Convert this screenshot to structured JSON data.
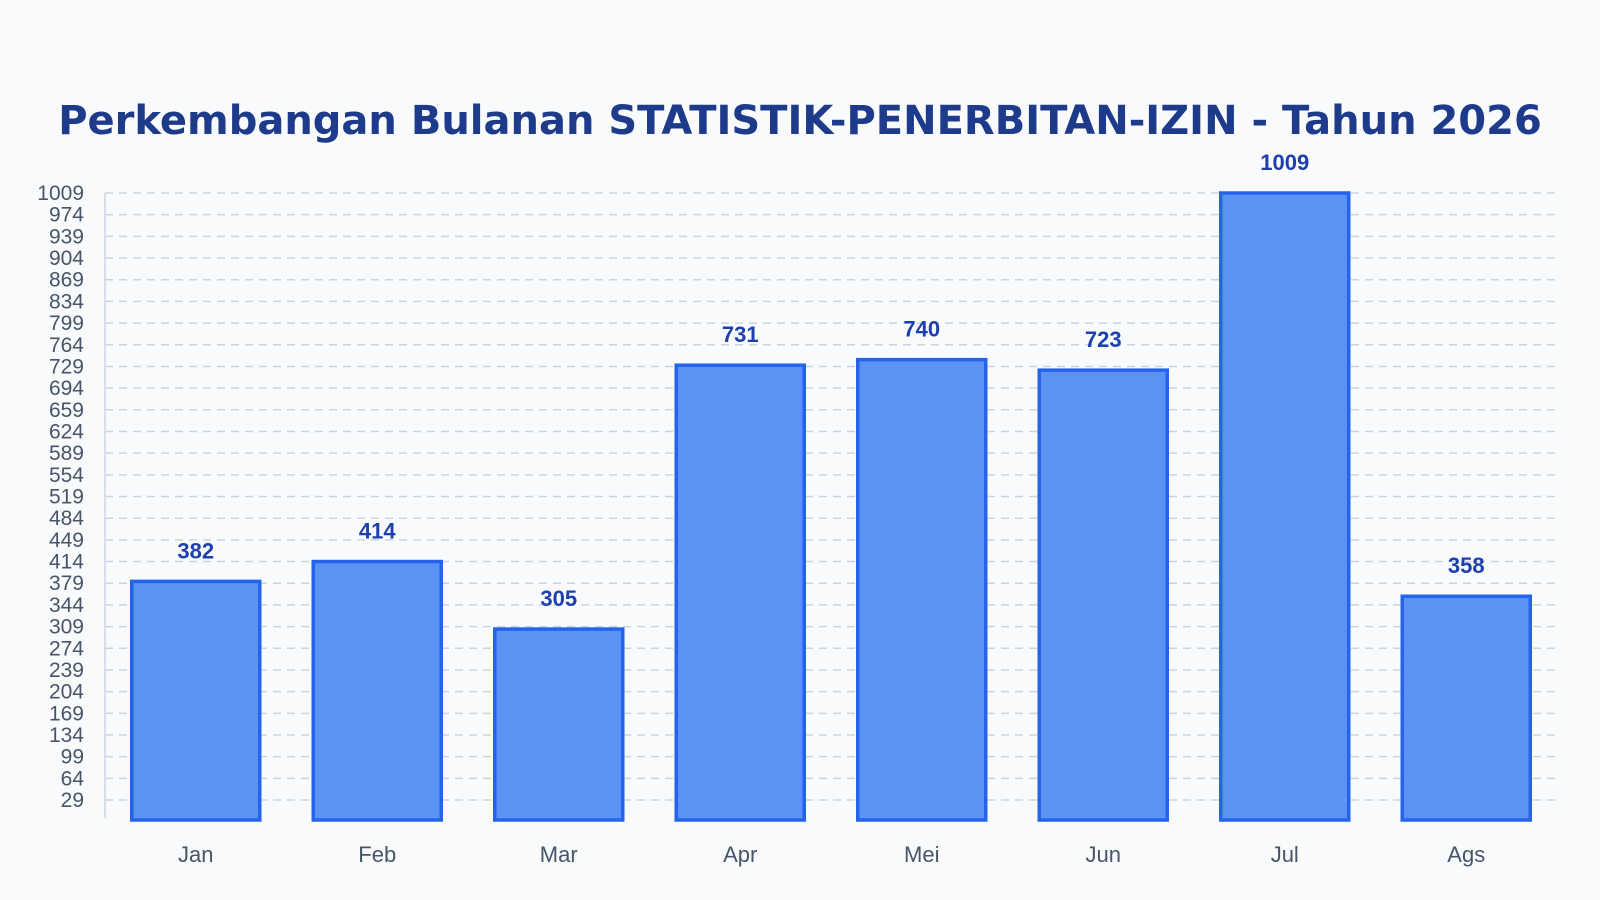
{
  "chart_data": {
    "type": "bar",
    "title": "Perkembangan Bulanan STATISTIK-PENERBITAN-IZIN - Tahun 2026",
    "xlabel": "",
    "ylabel": "",
    "categories": [
      "Jan",
      "Feb",
      "Mar",
      "Apr",
      "Mei",
      "Jun",
      "Jul",
      "Ags"
    ],
    "values": [
      382,
      414,
      305,
      731,
      740,
      723,
      1009,
      358
    ],
    "yticks": [
      29,
      64,
      99,
      134,
      169,
      204,
      239,
      274,
      309,
      344,
      379,
      414,
      449,
      484,
      519,
      554,
      589,
      624,
      659,
      694,
      729,
      764,
      799,
      834,
      869,
      904,
      939,
      974,
      1009
    ],
    "ylim": [
      0,
      1009
    ],
    "grid": true,
    "legend": "none",
    "colors": {
      "bar_fill": "#5b93f5",
      "bar_stroke": "#2563eb",
      "value_label": "#1e40af",
      "title": "#1e3a8a",
      "grid": "#cbd5e1",
      "axis": "#cbd5e1",
      "tick_text": "#475569",
      "background": "#f8fafc"
    }
  }
}
